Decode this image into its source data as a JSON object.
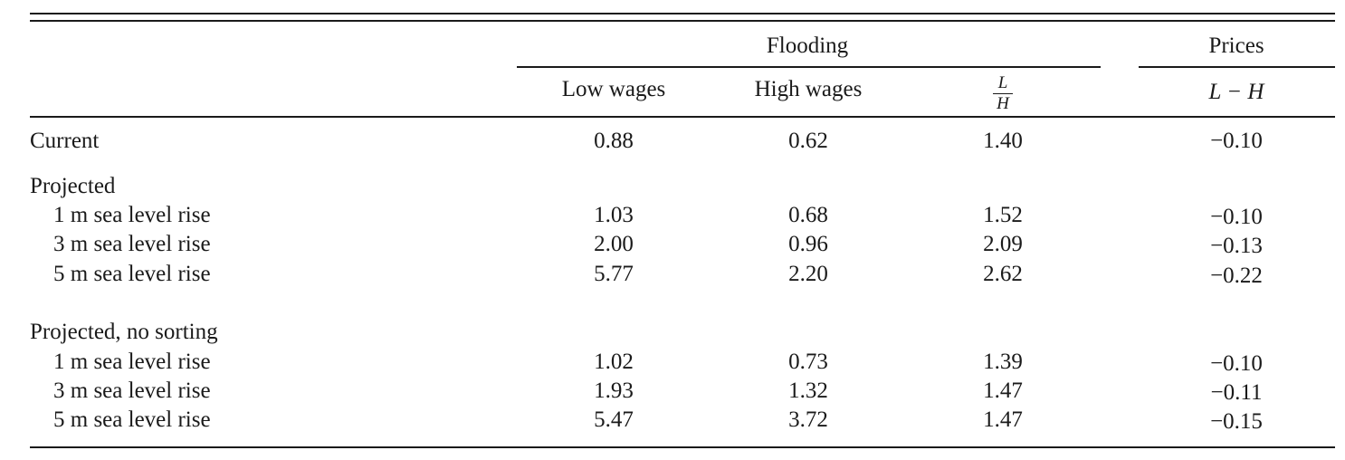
{
  "table": {
    "group_headers": {
      "flooding": "Flooding",
      "prices": "Prices"
    },
    "column_headers": {
      "low_wages": "Low wages",
      "high_wages": "High wages",
      "ratio_numerator": "L",
      "ratio_denominator": "H",
      "prices_diff": "L − H"
    },
    "rows": {
      "current": {
        "label": "Current",
        "low": "0.88",
        "high": "0.62",
        "ratio": "1.40",
        "prices": "−0.10"
      },
      "projected": {
        "label": "Projected",
        "r1": {
          "label": "1 m sea level rise",
          "low": "1.03",
          "high": "0.68",
          "ratio": "1.52",
          "prices": "−0.10"
        },
        "r3": {
          "label": "3 m sea level rise",
          "low": "2.00",
          "high": "0.96",
          "ratio": "2.09",
          "prices": "−0.13"
        },
        "r5": {
          "label": "5 m sea level rise",
          "low": "5.77",
          "high": "2.20",
          "ratio": "2.62",
          "prices": "−0.22"
        }
      },
      "no_sorting": {
        "label": "Projected, no sorting",
        "r1": {
          "label": "1 m sea level rise",
          "low": "1.02",
          "high": "0.73",
          "ratio": "1.39",
          "prices": "−0.10"
        },
        "r3": {
          "label": "3 m sea level rise",
          "low": "1.93",
          "high": "1.32",
          "ratio": "1.47",
          "prices": "−0.11"
        },
        "r5": {
          "label": "5 m sea level rise",
          "low": "5.47",
          "high": "3.72",
          "ratio": "1.47",
          "prices": "−0.15"
        }
      }
    }
  }
}
